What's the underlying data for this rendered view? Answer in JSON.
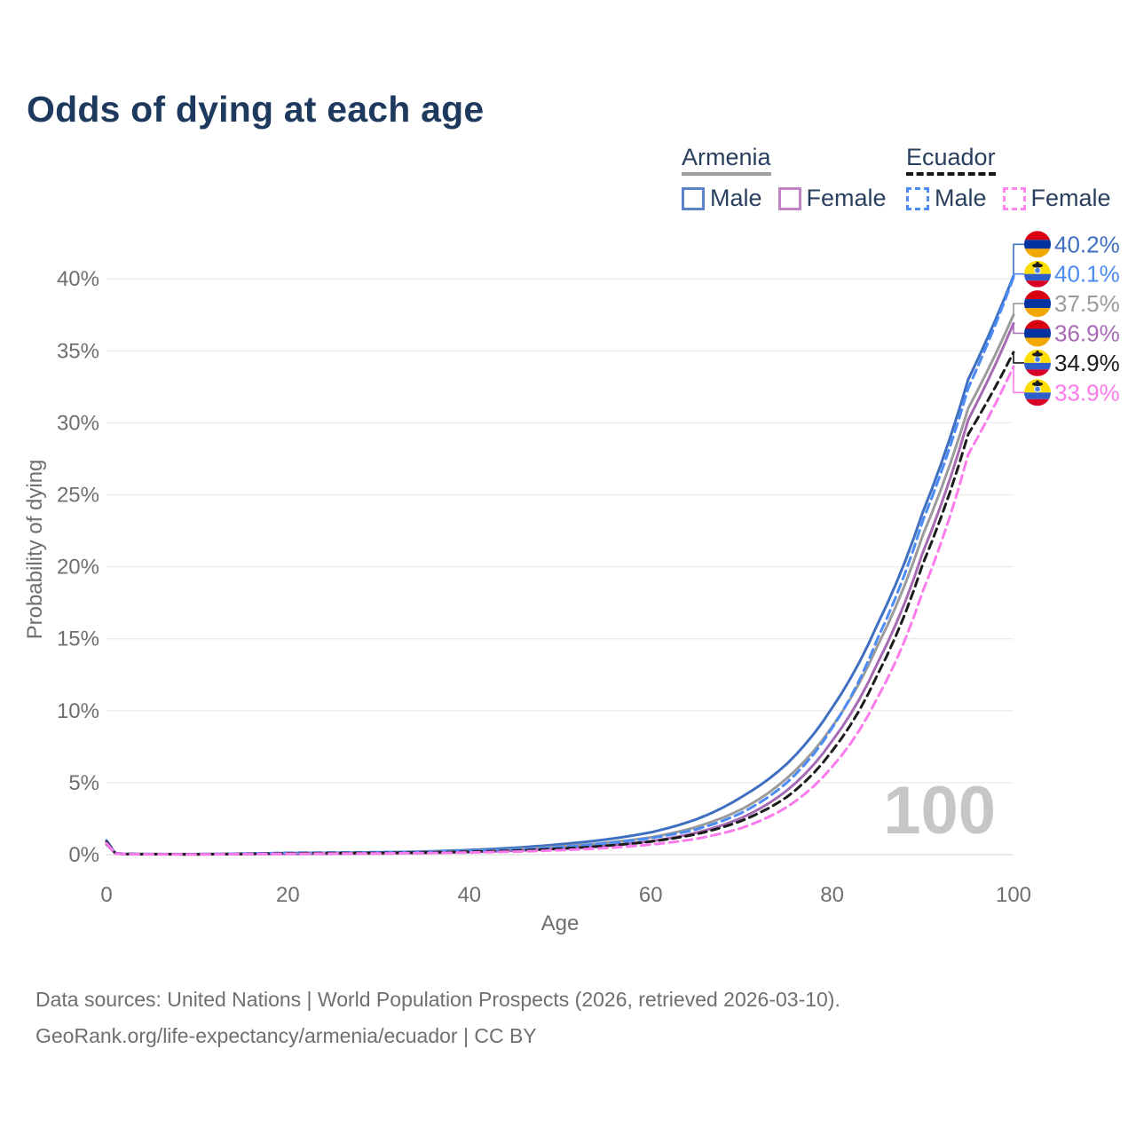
{
  "page": {
    "title": "Odds of dying at each age"
  },
  "legend": {
    "groups": [
      {
        "country": "Armenia",
        "line_style": "solid",
        "underline_color": "#9e9e9e",
        "items": [
          {
            "label": "Male",
            "color": "#3e6fc0",
            "dashed": false
          },
          {
            "label": "Female",
            "color": "#a76ab4",
            "dashed": false
          }
        ]
      },
      {
        "country": "Ecuador",
        "line_style": "dashed",
        "underline_color": "#151515",
        "items": [
          {
            "label": "Male",
            "color": "#4b8bf4",
            "dashed": true
          },
          {
            "label": "Female",
            "color": "#fb7bec",
            "dashed": true
          }
        ]
      }
    ]
  },
  "chart_data": {
    "type": "line",
    "title": "Odds of dying at each age",
    "xlabel": "Age",
    "ylabel": "Probability of dying",
    "xlim": [
      0,
      100
    ],
    "ylim": [
      0,
      42
    ],
    "grid": "horizontal",
    "x_ticks": [
      0,
      20,
      40,
      60,
      80,
      100
    ],
    "y_ticks": {
      "values": [
        0,
        5,
        10,
        15,
        20,
        25,
        30,
        35,
        40
      ],
      "labels": [
        "0%",
        "5%",
        "10%",
        "15%",
        "20%",
        "25%",
        "30%",
        "35%",
        "40%"
      ]
    },
    "age_watermark": "100",
    "ages": [
      0,
      1,
      2,
      5,
      10,
      15,
      20,
      25,
      30,
      35,
      40,
      45,
      50,
      55,
      60,
      65,
      70,
      75,
      80,
      85,
      90,
      95,
      100
    ],
    "series": [
      {
        "name": "Armenia Male",
        "country": "armenia",
        "color": "#3e6fc0",
        "dash": "",
        "end_label": "40.2%",
        "end_value": 40.2,
        "values": [
          0.9,
          0.1,
          0.05,
          0.04,
          0.04,
          0.07,
          0.11,
          0.13,
          0.16,
          0.22,
          0.32,
          0.48,
          0.72,
          1.05,
          1.55,
          2.45,
          4.0,
          6.3,
          10.2,
          16.0,
          23.8,
          33.0,
          40.2
        ]
      },
      {
        "name": "Ecuador Male",
        "country": "ecuador",
        "color": "#4b8bf4",
        "dash": "10 6",
        "end_label": "40.1%",
        "end_value": 40.1,
        "values": [
          1.0,
          0.09,
          0.05,
          0.03,
          0.03,
          0.07,
          0.13,
          0.15,
          0.17,
          0.2,
          0.26,
          0.36,
          0.52,
          0.78,
          1.15,
          1.75,
          2.9,
          5.0,
          8.8,
          15.0,
          23.2,
          32.4,
          40.1
        ]
      },
      {
        "name": "Armenia",
        "country": "armenia",
        "color": "#9b9b9b",
        "dash": "",
        "end_label": "37.5%",
        "end_value": 37.5,
        "values": [
          0.8,
          0.09,
          0.045,
          0.035,
          0.03,
          0.06,
          0.08,
          0.1,
          0.12,
          0.17,
          0.25,
          0.37,
          0.56,
          0.82,
          1.2,
          1.92,
          3.15,
          5.3,
          8.9,
          14.5,
          22.2,
          31.0,
          37.5
        ]
      },
      {
        "name": "Armenia Female",
        "country": "armenia",
        "color": "#a76ab4",
        "dash": "",
        "end_label": "36.9%",
        "end_value": 36.9,
        "values": [
          0.7,
          0.08,
          0.04,
          0.03,
          0.025,
          0.04,
          0.05,
          0.06,
          0.08,
          0.12,
          0.18,
          0.28,
          0.42,
          0.63,
          0.93,
          1.52,
          2.55,
          4.45,
          7.9,
          13.3,
          21.0,
          30.2,
          36.9
        ]
      },
      {
        "name": "Ecuador",
        "country": "ecuador",
        "color": "#1b1b1b",
        "dash": "9 6",
        "end_label": "34.9%",
        "end_value": 34.9,
        "values": [
          0.9,
          0.08,
          0.04,
          0.03,
          0.025,
          0.05,
          0.09,
          0.11,
          0.12,
          0.15,
          0.2,
          0.28,
          0.41,
          0.61,
          0.91,
          1.42,
          2.35,
          4.0,
          7.2,
          12.5,
          20.2,
          29.2,
          34.9
        ]
      },
      {
        "name": "Ecuador Female",
        "country": "ecuador",
        "color": "#fb7bec",
        "dash": "10 6",
        "end_label": "33.9%",
        "end_value": 33.9,
        "values": [
          0.8,
          0.07,
          0.035,
          0.025,
          0.02,
          0.04,
          0.06,
          0.07,
          0.08,
          0.11,
          0.15,
          0.21,
          0.31,
          0.46,
          0.7,
          1.1,
          1.85,
          3.3,
          6.1,
          10.9,
          18.3,
          27.8,
          33.9
        ]
      }
    ],
    "flag_colors": {
      "armenia": {
        "red": "#D90012",
        "blue": "#0033A0",
        "orange": "#F2A800"
      },
      "ecuador": {
        "yellow": "#FFDD00",
        "blue": "#2E5EC9",
        "red": "#D80027",
        "condor": "#1b1b1b",
        "globe": "#4a7fd4"
      }
    }
  },
  "footer": {
    "line1": "Data sources: United Nations | World Population Prospects (2026, retrieved 2026-03-10).",
    "line2": "GeoRank.org/life-expectancy/armenia/ecuador | CC BY"
  }
}
